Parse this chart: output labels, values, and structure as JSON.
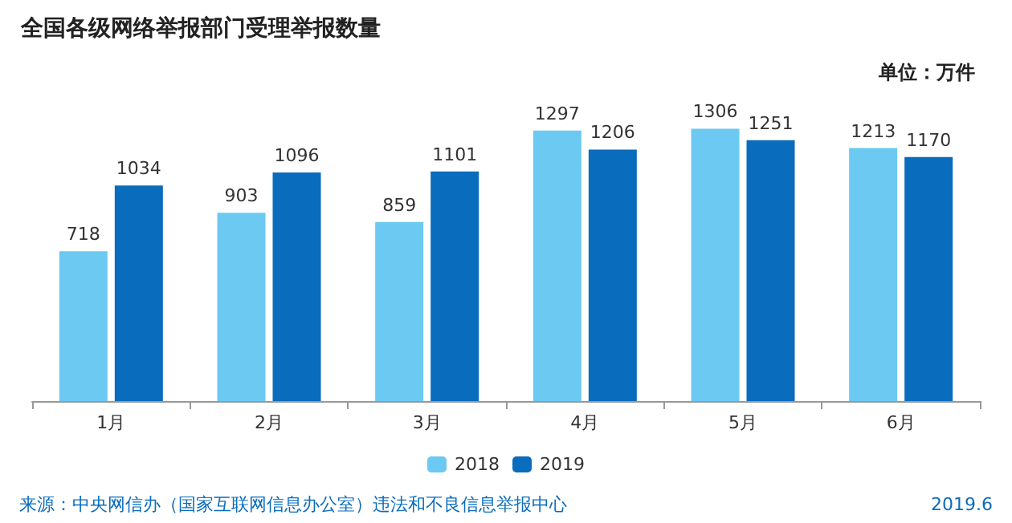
{
  "chart_data": {
    "type": "bar",
    "title": "全国各级网络举报部门受理举报数量",
    "subtitle": "单位：万件",
    "categories": [
      "1月",
      "2月",
      "3月",
      "4月",
      "5月",
      "6月"
    ],
    "series": [
      {
        "name": "2018",
        "color": "#6cc9f2",
        "values": [
          718,
          903,
          859,
          1297,
          1306,
          1213
        ]
      },
      {
        "name": "2019",
        "color": "#0a6cbd",
        "values": [
          1034,
          1096,
          1101,
          1206,
          1251,
          1170
        ]
      }
    ],
    "data_labels": true,
    "legend": "bottom",
    "grid": false,
    "annotations": [
      "来源：中央网信办（国家互联网信息办公室）违法和不良信息举报中心",
      "2019.6"
    ]
  }
}
